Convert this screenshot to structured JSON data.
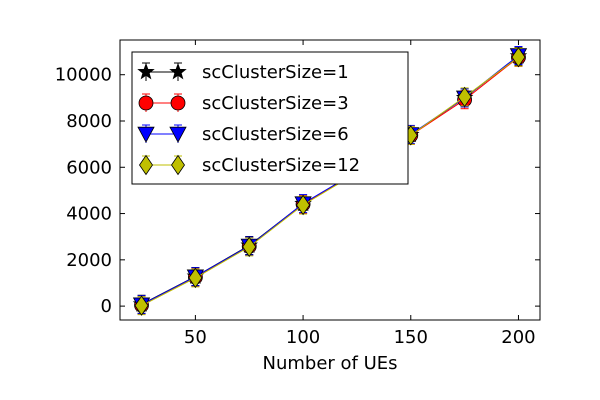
{
  "chart_data": {
    "type": "line",
    "title": "",
    "xlabel": "Number of UEs",
    "ylabel": "",
    "xlim": [
      15,
      210
    ],
    "ylim": [
      -600,
      11500
    ],
    "xticks": [
      50,
      100,
      150,
      200
    ],
    "yticks": [
      0,
      2000,
      4000,
      6000,
      8000,
      10000
    ],
    "x": [
      25,
      50,
      75,
      100,
      125,
      150,
      175,
      200
    ],
    "legend_position": "upper-left",
    "grid": false,
    "series": [
      {
        "name": "scClusterSize=1",
        "marker": "star",
        "color": "#000000",
        "values": [
          80,
          1280,
          2620,
          4420,
          5800,
          7400,
          9000,
          10800
        ]
      },
      {
        "name": "scClusterSize=3",
        "marker": "circle",
        "color": "#ff0000",
        "values": [
          40,
          1250,
          2580,
          4400,
          5780,
          7380,
          8920,
          10750
        ]
      },
      {
        "name": "scClusterSize=6",
        "marker": "triangle-down",
        "color": "#0000ff",
        "values": [
          60,
          1270,
          2600,
          4430,
          5810,
          7420,
          9000,
          10830
        ]
      },
      {
        "name": "scClusterSize=12",
        "marker": "thin-diamond",
        "color": "#bfbf00",
        "values": [
          20,
          1220,
          2560,
          4370,
          5760,
          7380,
          9040,
          10760
        ]
      }
    ]
  }
}
